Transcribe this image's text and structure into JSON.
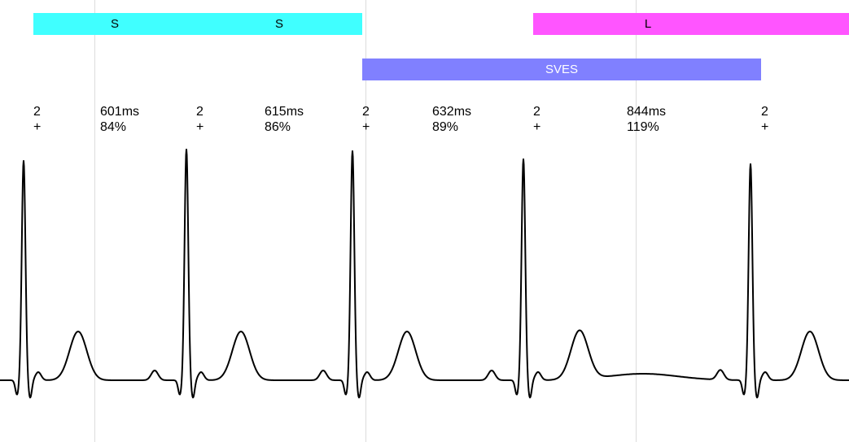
{
  "colors": {
    "normal_band": "#40ffff",
    "long_band": "#ff55ff",
    "sves_band": "#8080ff",
    "trace": "#000000",
    "gridline": "#dcdcdc"
  },
  "bands": {
    "normal": {
      "labels": [
        "S",
        "S"
      ]
    },
    "long": {
      "label": "L"
    },
    "sves": {
      "label": "SVES"
    }
  },
  "beats": [
    {
      "class": "2",
      "sign": "+"
    },
    {
      "class": "2",
      "sign": "+"
    },
    {
      "class": "2",
      "sign": "+"
    },
    {
      "class": "2",
      "sign": "+"
    },
    {
      "class": "2",
      "sign": "+"
    }
  ],
  "intervals": [
    {
      "ms": "601ms",
      "pct": "84%"
    },
    {
      "ms": "615ms",
      "pct": "86%"
    },
    {
      "ms": "632ms",
      "pct": "89%"
    },
    {
      "ms": "844ms",
      "pct": "119%"
    }
  ],
  "chart_data": {
    "type": "line",
    "rr_intervals_ms": [
      601,
      615,
      632,
      844
    ],
    "rr_percent": [
      84,
      86,
      89,
      119
    ]
  }
}
